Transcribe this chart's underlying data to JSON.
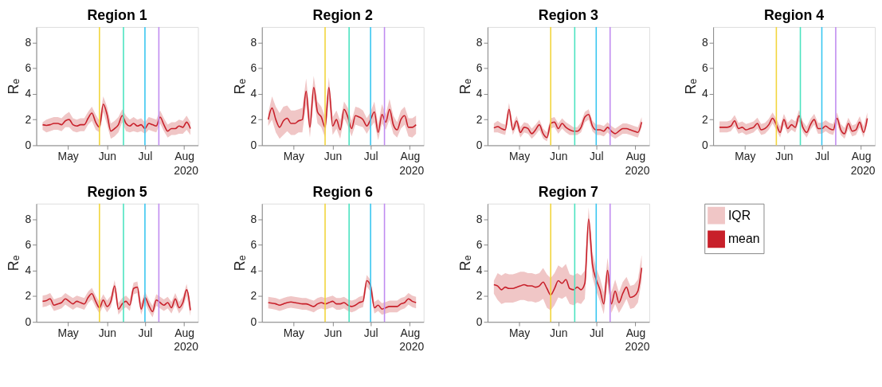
{
  "chart_data": [
    {
      "type": "line",
      "title": "Region 1",
      "ylabel": "Rₑ",
      "xlabel": "2020",
      "xlim": [
        "2020-04-06",
        "2020-08-12"
      ],
      "ylim": [
        0,
        9.2
      ],
      "yticks": [
        0,
        2,
        4,
        6,
        8
      ],
      "xticks": [
        {
          "value": "2020-05-01",
          "label": "May"
        },
        {
          "value": "2020-06-01",
          "label": "Jun"
        },
        {
          "value": "2020-07-01",
          "label": "Jul"
        },
        {
          "value": "2020-08-01",
          "label": "Aug"
        }
      ],
      "x": [
        "2020-04-11",
        "2020-04-14",
        "2020-04-17",
        "2020-04-20",
        "2020-04-23",
        "2020-04-26",
        "2020-04-29",
        "2020-05-02",
        "2020-05-05",
        "2020-05-08",
        "2020-05-11",
        "2020-05-14",
        "2020-05-17",
        "2020-05-20",
        "2020-05-23",
        "2020-05-26",
        "2020-05-29",
        "2020-06-01",
        "2020-06-04",
        "2020-06-07",
        "2020-06-10",
        "2020-06-13",
        "2020-06-16",
        "2020-06-19",
        "2020-06-22",
        "2020-06-25",
        "2020-06-28",
        "2020-07-01",
        "2020-07-04",
        "2020-07-07",
        "2020-07-10",
        "2020-07-13",
        "2020-07-16",
        "2020-07-19",
        "2020-07-22",
        "2020-07-25",
        "2020-07-28",
        "2020-07-31",
        "2020-08-03",
        "2020-08-06"
      ],
      "series": [
        {
          "type": "area",
          "color": "#f0c6c6",
          "values": [
            null,
            null,
            null,
            null,
            null,
            null,
            null,
            null,
            null,
            null,
            null,
            null,
            null,
            null,
            null,
            null,
            null,
            null,
            null,
            null,
            null,
            null,
            null,
            null,
            null,
            null,
            null,
            null,
            null,
            null,
            null,
            null,
            null,
            null,
            null,
            null,
            null,
            null,
            null,
            null
          ],
          "lower": [
            1.2,
            1.0,
            1.1,
            1.2,
            1.2,
            1.1,
            1.4,
            1.4,
            1.1,
            1.0,
            1.1,
            1.1,
            1.6,
            1.9,
            1.2,
            1.0,
            2.6,
            1.6,
            0.5,
            0.7,
            1.0,
            1.8,
            1.1,
            1.0,
            1.1,
            1.0,
            1.1,
            0.9,
            1.2,
            1.1,
            1.0,
            1.7,
            1.1,
            0.6,
            0.8,
            0.8,
            0.9,
            0.9,
            1.2,
            0.8
          ],
          "upper": [
            1.8,
            2.0,
            2.1,
            2.2,
            2.2,
            2.1,
            2.4,
            2.6,
            2.1,
            2.0,
            2.1,
            2.1,
            2.6,
            3.0,
            2.4,
            1.9,
            3.8,
            3.0,
            1.7,
            1.9,
            2.2,
            2.8,
            2.3,
            2.0,
            2.2,
            2.0,
            2.1,
            1.8,
            2.2,
            2.1,
            2.0,
            2.7,
            2.1,
            1.6,
            1.8,
            1.8,
            2.0,
            1.9,
            2.3,
            1.8
          ]
        },
        {
          "color": "#c8202a",
          "values": [
            1.6,
            1.55,
            1.6,
            1.7,
            1.7,
            1.6,
            1.9,
            2.0,
            1.6,
            1.5,
            1.6,
            1.6,
            2.1,
            2.5,
            1.8,
            1.4,
            3.2,
            2.4,
            1.1,
            1.3,
            1.6,
            2.3,
            1.7,
            1.5,
            1.7,
            1.5,
            1.6,
            1.3,
            1.7,
            1.6,
            1.5,
            2.2,
            1.6,
            1.1,
            1.3,
            1.3,
            1.5,
            1.4,
            1.8,
            1.3
          ]
        }
      ],
      "ref_lines": [
        {
          "axis": "x",
          "value": "2020-05-26",
          "color": "#f2d53c"
        },
        {
          "axis": "x",
          "value": "2020-06-14",
          "color": "#4be3c0"
        },
        {
          "axis": "x",
          "value": "2020-07-01",
          "color": "#38c6f0"
        },
        {
          "axis": "x",
          "value": "2020-07-12",
          "color": "#c08cf0"
        }
      ]
    },
    {
      "type": "line",
      "title": "Region 2",
      "ylabel": "Rₑ",
      "xlabel": "2020",
      "xlim": [
        "2020-04-06",
        "2020-08-12"
      ],
      "ylim": [
        0,
        9.2
      ],
      "yticks": [
        0,
        2,
        4,
        6,
        8
      ],
      "xticks": [
        {
          "value": "2020-05-01",
          "label": "May"
        },
        {
          "value": "2020-06-01",
          "label": "Jun"
        },
        {
          "value": "2020-07-01",
          "label": "Jul"
        },
        {
          "value": "2020-08-01",
          "label": "Aug"
        }
      ],
      "x": [
        "2020-04-11",
        "2020-04-14",
        "2020-04-17",
        "2020-04-20",
        "2020-04-23",
        "2020-04-26",
        "2020-04-29",
        "2020-05-02",
        "2020-05-05",
        "2020-05-08",
        "2020-05-11",
        "2020-05-14",
        "2020-05-17",
        "2020-05-20",
        "2020-05-23",
        "2020-05-26",
        "2020-05-29",
        "2020-06-01",
        "2020-06-04",
        "2020-06-07",
        "2020-06-10",
        "2020-06-13",
        "2020-06-16",
        "2020-06-19",
        "2020-06-22",
        "2020-06-25",
        "2020-06-28",
        "2020-07-01",
        "2020-07-04",
        "2020-07-07",
        "2020-07-10",
        "2020-07-13",
        "2020-07-16",
        "2020-07-19",
        "2020-07-22",
        "2020-07-25",
        "2020-07-28",
        "2020-07-31",
        "2020-08-03",
        "2020-08-06"
      ],
      "series": [
        {
          "type": "area",
          "color": "#f0c6c6",
          "values": [
            null,
            null,
            null,
            null,
            null,
            null,
            null,
            null,
            null,
            null,
            null,
            null,
            null,
            null,
            null,
            null,
            null,
            null,
            null,
            null,
            null,
            null,
            null,
            null,
            null,
            null,
            null,
            null,
            null,
            null,
            null,
            null,
            null,
            null,
            null,
            null,
            null,
            null,
            null,
            null
          ],
          "lower": [
            1.5,
            2.0,
            1.0,
            0.5,
            0.8,
            1.1,
            0.8,
            0.8,
            1.0,
            1.0,
            3.2,
            0.6,
            3.7,
            1.7,
            1.4,
            0.6,
            3.6,
            0.8,
            1.3,
            0.5,
            2.1,
            1.5,
            0.7,
            1.6,
            1.5,
            1.4,
            0.9,
            1.4,
            1.8,
            0.4,
            1.7,
            1.2,
            2.0,
            0.9,
            0.6,
            1.3,
            1.6,
            0.7,
            0.6,
            0.9
          ],
          "upper": [
            2.5,
            3.8,
            3.0,
            2.5,
            3.0,
            3.1,
            2.7,
            2.7,
            2.8,
            2.9,
            5.2,
            2.3,
            5.4,
            3.4,
            3.0,
            2.2,
            5.3,
            2.2,
            2.7,
            1.9,
            3.4,
            2.9,
            1.9,
            3.0,
            2.9,
            2.7,
            2.1,
            2.6,
            3.4,
            1.6,
            3.2,
            2.4,
            3.6,
            2.3,
            1.8,
            2.7,
            3.0,
            2.1,
            2.1,
            2.3
          ]
        },
        {
          "color": "#c8202a",
          "values": [
            2.0,
            2.9,
            2.0,
            1.4,
            1.9,
            2.1,
            1.7,
            1.7,
            1.9,
            2.0,
            4.2,
            1.4,
            4.5,
            2.6,
            2.2,
            1.4,
            4.5,
            1.5,
            2.0,
            1.2,
            2.8,
            2.2,
            1.3,
            2.3,
            2.2,
            2.0,
            1.5,
            2.0,
            2.6,
            1.0,
            2.4,
            1.8,
            2.8,
            1.6,
            1.2,
            2.0,
            2.3,
            1.4,
            1.4,
            1.6
          ]
        }
      ],
      "ref_lines": [
        {
          "axis": "x",
          "value": "2020-05-26",
          "color": "#f2d53c"
        },
        {
          "axis": "x",
          "value": "2020-06-14",
          "color": "#4be3c0"
        },
        {
          "axis": "x",
          "value": "2020-07-01",
          "color": "#38c6f0"
        },
        {
          "axis": "x",
          "value": "2020-07-12",
          "color": "#c08cf0"
        }
      ]
    },
    {
      "type": "line",
      "title": "Region 3",
      "ylabel": "Rₑ",
      "xlabel": "2020",
      "xlim": [
        "2020-04-06",
        "2020-08-12"
      ],
      "ylim": [
        0,
        9.2
      ],
      "yticks": [
        0,
        2,
        4,
        6,
        8
      ],
      "xticks": [
        {
          "value": "2020-05-01",
          "label": "May"
        },
        {
          "value": "2020-06-01",
          "label": "Jun"
        },
        {
          "value": "2020-07-01",
          "label": "Jul"
        },
        {
          "value": "2020-08-01",
          "label": "Aug"
        }
      ],
      "x": [
        "2020-04-11",
        "2020-04-14",
        "2020-04-17",
        "2020-04-20",
        "2020-04-23",
        "2020-04-26",
        "2020-04-29",
        "2020-05-02",
        "2020-05-05",
        "2020-05-08",
        "2020-05-11",
        "2020-05-14",
        "2020-05-17",
        "2020-05-20",
        "2020-05-23",
        "2020-05-26",
        "2020-05-29",
        "2020-06-01",
        "2020-06-04",
        "2020-06-07",
        "2020-06-10",
        "2020-06-13",
        "2020-06-16",
        "2020-06-19",
        "2020-06-22",
        "2020-06-25",
        "2020-06-28",
        "2020-07-01",
        "2020-07-04",
        "2020-07-07",
        "2020-07-10",
        "2020-07-13",
        "2020-07-16",
        "2020-07-19",
        "2020-07-22",
        "2020-07-25",
        "2020-07-28",
        "2020-07-31",
        "2020-08-03",
        "2020-08-06"
      ],
      "series": [
        {
          "type": "area",
          "color": "#f0c6c6",
          "values": [
            null,
            null,
            null,
            null,
            null,
            null,
            null,
            null,
            null,
            null,
            null,
            null,
            null,
            null,
            null,
            null,
            null,
            null,
            null,
            null,
            null,
            null,
            null,
            null,
            null,
            null,
            null,
            null,
            null,
            null,
            null,
            null,
            null,
            null,
            null,
            null,
            null,
            null,
            null,
            null
          ],
          "lower": [
            1.0,
            1.0,
            0.9,
            0.8,
            2.4,
            0.8,
            1.5,
            0.6,
            1.0,
            0.9,
            0.5,
            0.8,
            1.2,
            0.5,
            0.3,
            1.3,
            1.4,
            0.9,
            1.3,
            1.0,
            0.8,
            0.8,
            0.8,
            1.0,
            1.8,
            2.0,
            1.1,
            0.8,
            0.8,
            0.7,
            1.0,
            0.7,
            0.5,
            0.7,
            0.9,
            0.9,
            0.8,
            0.7,
            0.6,
            1.4
          ],
          "upper": [
            1.7,
            1.9,
            1.7,
            1.6,
            3.3,
            1.6,
            2.3,
            1.4,
            1.8,
            1.7,
            1.3,
            1.6,
            2.0,
            1.3,
            1.0,
            2.1,
            2.2,
            1.7,
            2.1,
            1.8,
            1.6,
            1.4,
            1.4,
            1.8,
            2.6,
            2.8,
            1.9,
            1.6,
            1.6,
            1.5,
            1.8,
            1.5,
            1.3,
            1.5,
            1.7,
            1.7,
            1.6,
            1.5,
            1.4,
            2.2
          ]
        },
        {
          "color": "#c8202a",
          "values": [
            1.35,
            1.45,
            1.3,
            1.2,
            2.8,
            1.2,
            1.9,
            1.0,
            1.4,
            1.3,
            0.9,
            1.2,
            1.6,
            0.9,
            0.6,
            1.7,
            1.8,
            1.3,
            1.7,
            1.4,
            1.2,
            1.1,
            1.1,
            1.4,
            2.2,
            2.4,
            1.5,
            1.2,
            1.2,
            1.1,
            1.4,
            1.1,
            0.9,
            1.1,
            1.3,
            1.3,
            1.2,
            1.1,
            1.0,
            1.8
          ]
        }
      ],
      "ref_lines": [
        {
          "axis": "x",
          "value": "2020-05-26",
          "color": "#f2d53c"
        },
        {
          "axis": "x",
          "value": "2020-06-14",
          "color": "#4be3c0"
        },
        {
          "axis": "x",
          "value": "2020-07-01",
          "color": "#38c6f0"
        },
        {
          "axis": "x",
          "value": "2020-07-12",
          "color": "#c08cf0"
        }
      ]
    },
    {
      "type": "line",
      "title": "Region 4",
      "ylabel": "Rₑ",
      "xlabel": "2020",
      "xlim": [
        "2020-04-06",
        "2020-08-12"
      ],
      "ylim": [
        0,
        9.2
      ],
      "yticks": [
        0,
        2,
        4,
        6,
        8
      ],
      "xticks": [
        {
          "value": "2020-05-01",
          "label": "May"
        },
        {
          "value": "2020-06-01",
          "label": "Jun"
        },
        {
          "value": "2020-07-01",
          "label": "Jul"
        },
        {
          "value": "2020-08-01",
          "label": "Aug"
        }
      ],
      "x": [
        "2020-04-11",
        "2020-04-14",
        "2020-04-17",
        "2020-04-20",
        "2020-04-23",
        "2020-04-26",
        "2020-04-29",
        "2020-05-02",
        "2020-05-05",
        "2020-05-08",
        "2020-05-11",
        "2020-05-14",
        "2020-05-17",
        "2020-05-20",
        "2020-05-23",
        "2020-05-26",
        "2020-05-29",
        "2020-06-01",
        "2020-06-04",
        "2020-06-07",
        "2020-06-10",
        "2020-06-13",
        "2020-06-16",
        "2020-06-19",
        "2020-06-22",
        "2020-06-25",
        "2020-06-28",
        "2020-07-01",
        "2020-07-04",
        "2020-07-07",
        "2020-07-10",
        "2020-07-13",
        "2020-07-16",
        "2020-07-19",
        "2020-07-22",
        "2020-07-25",
        "2020-07-28",
        "2020-07-31",
        "2020-08-03",
        "2020-08-06"
      ],
      "series": [
        {
          "type": "area",
          "color": "#f0c6c6",
          "values": [
            null,
            null,
            null,
            null,
            null,
            null,
            null,
            null,
            null,
            null,
            null,
            null,
            null,
            null,
            null,
            null,
            null,
            null,
            null,
            null,
            null,
            null,
            null,
            null,
            null,
            null,
            null,
            null,
            null,
            null,
            null,
            null,
            null,
            null,
            null,
            null,
            null,
            null,
            null,
            null
          ],
          "lower": [
            1.0,
            1.0,
            1.0,
            1.1,
            1.5,
            0.9,
            1.0,
            0.8,
            0.9,
            1.0,
            1.3,
            0.8,
            0.9,
            1.2,
            1.7,
            1.2,
            0.6,
            1.6,
            0.9,
            1.2,
            1.0,
            1.9,
            1.0,
            0.6,
            1.2,
            1.6,
            0.9,
            0.9,
            1.1,
            0.9,
            0.8,
            1.7,
            0.8,
            0.5,
            1.3,
            0.7,
            0.8,
            1.4,
            0.6,
            1.7
          ],
          "upper": [
            1.85,
            1.85,
            1.85,
            1.95,
            2.35,
            1.75,
            1.85,
            1.65,
            1.75,
            1.85,
            2.15,
            1.65,
            1.75,
            2.05,
            2.55,
            2.05,
            1.45,
            2.45,
            1.75,
            2.05,
            1.85,
            2.75,
            1.85,
            1.45,
            2.05,
            2.45,
            1.75,
            1.75,
            1.95,
            1.75,
            1.65,
            2.55,
            1.65,
            1.35,
            2.15,
            1.55,
            1.65,
            2.25,
            1.45,
            2.55
          ]
        },
        {
          "color": "#c8202a",
          "values": [
            1.4,
            1.4,
            1.4,
            1.5,
            1.9,
            1.3,
            1.4,
            1.2,
            1.3,
            1.4,
            1.7,
            1.2,
            1.3,
            1.6,
            2.1,
            1.6,
            1.0,
            2.0,
            1.3,
            1.6,
            1.4,
            2.3,
            1.4,
            1.0,
            1.6,
            2.0,
            1.3,
            1.3,
            1.5,
            1.3,
            1.2,
            2.1,
            1.2,
            0.9,
            1.7,
            1.1,
            1.2,
            1.8,
            1.0,
            2.1
          ]
        }
      ],
      "ref_lines": [
        {
          "axis": "x",
          "value": "2020-05-26",
          "color": "#f2d53c"
        },
        {
          "axis": "x",
          "value": "2020-06-14",
          "color": "#4be3c0"
        },
        {
          "axis": "x",
          "value": "2020-07-01",
          "color": "#38c6f0"
        },
        {
          "axis": "x",
          "value": "2020-07-12",
          "color": "#c08cf0"
        }
      ]
    },
    {
      "type": "line",
      "title": "Region 5",
      "ylabel": "Rₑ",
      "xlabel": "2020",
      "xlim": [
        "2020-04-06",
        "2020-08-12"
      ],
      "ylim": [
        0,
        9.2
      ],
      "yticks": [
        0,
        2,
        4,
        6,
        8
      ],
      "xticks": [
        {
          "value": "2020-05-01",
          "label": "May"
        },
        {
          "value": "2020-06-01",
          "label": "Jun"
        },
        {
          "value": "2020-07-01",
          "label": "Jul"
        },
        {
          "value": "2020-08-01",
          "label": "Aug"
        }
      ],
      "x": [
        "2020-04-11",
        "2020-04-14",
        "2020-04-17",
        "2020-04-20",
        "2020-04-23",
        "2020-04-26",
        "2020-04-29",
        "2020-05-02",
        "2020-05-05",
        "2020-05-08",
        "2020-05-11",
        "2020-05-14",
        "2020-05-17",
        "2020-05-20",
        "2020-05-23",
        "2020-05-26",
        "2020-05-29",
        "2020-06-01",
        "2020-06-04",
        "2020-06-07",
        "2020-06-10",
        "2020-06-13",
        "2020-06-16",
        "2020-06-19",
        "2020-06-22",
        "2020-06-25",
        "2020-06-28",
        "2020-07-01",
        "2020-07-04",
        "2020-07-07",
        "2020-07-10",
        "2020-07-13",
        "2020-07-16",
        "2020-07-19",
        "2020-07-22",
        "2020-07-25",
        "2020-07-28",
        "2020-07-31",
        "2020-08-03",
        "2020-08-06"
      ],
      "series": [
        {
          "type": "area",
          "color": "#f0c6c6",
          "values": [
            null,
            null,
            null,
            null,
            null,
            null,
            null,
            null,
            null,
            null,
            null,
            null,
            null,
            null,
            null,
            null,
            null,
            null,
            null,
            null,
            null,
            null,
            null,
            null,
            null,
            null,
            null,
            null,
            null,
            null,
            null,
            null,
            null,
            null,
            null,
            null,
            null,
            null,
            null,
            null
          ],
          "lower": [
            1.15,
            1.2,
            1.35,
            0.85,
            0.95,
            1.05,
            1.35,
            1.15,
            0.95,
            1.15,
            1.05,
            0.95,
            1.45,
            1.75,
            1.15,
            0.65,
            1.25,
            0.75,
            1.15,
            2.35,
            0.55,
            0.95,
            1.15,
            0.85,
            2.15,
            2.25,
            0.55,
            1.45,
            0.85,
            0.35,
            1.25,
            1.05,
            0.85,
            1.05,
            0.65,
            1.35,
            0.65,
            1.05,
            2.05,
            0.45
          ],
          "upper": [
            2.05,
            2.1,
            2.25,
            1.75,
            1.85,
            1.95,
            2.25,
            2.05,
            1.85,
            2.05,
            1.95,
            1.85,
            2.35,
            2.65,
            2.05,
            1.55,
            2.15,
            1.65,
            2.05,
            3.25,
            1.45,
            1.85,
            2.05,
            1.75,
            3.05,
            3.15,
            1.45,
            2.35,
            1.75,
            1.25,
            2.15,
            1.95,
            1.75,
            1.95,
            1.55,
            2.25,
            1.55,
            1.95,
            2.95,
            1.35
          ]
        },
        {
          "color": "#c8202a",
          "values": [
            1.6,
            1.65,
            1.8,
            1.3,
            1.4,
            1.5,
            1.8,
            1.6,
            1.4,
            1.6,
            1.5,
            1.4,
            1.9,
            2.2,
            1.6,
            1.1,
            1.7,
            1.2,
            1.6,
            2.8,
            1.0,
            1.4,
            1.6,
            1.3,
            2.6,
            2.7,
            1.0,
            1.9,
            1.3,
            0.8,
            1.7,
            1.5,
            1.3,
            1.5,
            1.1,
            1.8,
            1.1,
            1.5,
            2.5,
            0.9
          ]
        }
      ],
      "ref_lines": [
        {
          "axis": "x",
          "value": "2020-05-26",
          "color": "#f2d53c"
        },
        {
          "axis": "x",
          "value": "2020-06-14",
          "color": "#4be3c0"
        },
        {
          "axis": "x",
          "value": "2020-07-01",
          "color": "#38c6f0"
        },
        {
          "axis": "x",
          "value": "2020-07-12",
          "color": "#c08cf0"
        }
      ]
    },
    {
      "type": "line",
      "title": "Region 6",
      "ylabel": "Rₑ",
      "xlabel": "2020",
      "xlim": [
        "2020-04-06",
        "2020-08-12"
      ],
      "ylim": [
        0,
        9.2
      ],
      "yticks": [
        0,
        2,
        4,
        6,
        8
      ],
      "xticks": [
        {
          "value": "2020-05-01",
          "label": "May"
        },
        {
          "value": "2020-06-01",
          "label": "Jun"
        },
        {
          "value": "2020-07-01",
          "label": "Jul"
        },
        {
          "value": "2020-08-01",
          "label": "Aug"
        }
      ],
      "x": [
        "2020-04-11",
        "2020-04-14",
        "2020-04-17",
        "2020-04-20",
        "2020-04-23",
        "2020-04-26",
        "2020-04-29",
        "2020-05-02",
        "2020-05-05",
        "2020-05-08",
        "2020-05-11",
        "2020-05-14",
        "2020-05-17",
        "2020-05-20",
        "2020-05-23",
        "2020-05-26",
        "2020-05-29",
        "2020-06-01",
        "2020-06-04",
        "2020-06-07",
        "2020-06-10",
        "2020-06-13",
        "2020-06-16",
        "2020-06-19",
        "2020-06-22",
        "2020-06-25",
        "2020-06-28",
        "2020-07-01",
        "2020-07-04",
        "2020-07-07",
        "2020-07-10",
        "2020-07-13",
        "2020-07-16",
        "2020-07-19",
        "2020-07-22",
        "2020-07-25",
        "2020-07-28",
        "2020-07-31",
        "2020-08-03",
        "2020-08-06"
      ],
      "series": [
        {
          "type": "area",
          "color": "#f0c6c6",
          "values": [
            null,
            null,
            null,
            null,
            null,
            null,
            null,
            null,
            null,
            null,
            null,
            null,
            null,
            null,
            null,
            null,
            null,
            null,
            null,
            null,
            null,
            null,
            null,
            null,
            null,
            null,
            null,
            null,
            null,
            null,
            null,
            null,
            null,
            null,
            null,
            null,
            null,
            null,
            null,
            null
          ],
          "lower": [
            1.05,
            1.0,
            0.95,
            0.85,
            0.95,
            1.05,
            1.1,
            1.05,
            1.0,
            0.95,
            0.95,
            0.85,
            0.75,
            0.95,
            1.05,
            0.95,
            1.05,
            1.15,
            0.95,
            0.95,
            1.05,
            0.85,
            0.75,
            0.85,
            1.05,
            1.15,
            2.75,
            2.35,
            0.65,
            0.85,
            0.55,
            0.65,
            0.75,
            0.75,
            0.75,
            0.95,
            1.05,
            1.35,
            1.15,
            1.05
          ],
          "upper": [
            1.95,
            1.9,
            1.85,
            1.75,
            1.85,
            1.95,
            2.0,
            1.95,
            1.9,
            1.85,
            1.85,
            1.75,
            1.65,
            1.85,
            1.95,
            1.85,
            1.95,
            2.05,
            1.85,
            1.85,
            1.95,
            1.75,
            1.65,
            1.75,
            1.95,
            2.05,
            3.65,
            3.25,
            1.55,
            1.75,
            1.45,
            1.55,
            1.65,
            1.65,
            1.65,
            1.85,
            1.95,
            2.25,
            2.05,
            1.95
          ]
        },
        {
          "color": "#c8202a",
          "values": [
            1.5,
            1.45,
            1.4,
            1.3,
            1.4,
            1.5,
            1.55,
            1.5,
            1.45,
            1.4,
            1.4,
            1.3,
            1.2,
            1.4,
            1.5,
            1.4,
            1.5,
            1.6,
            1.4,
            1.4,
            1.5,
            1.3,
            1.2,
            1.3,
            1.5,
            1.6,
            3.2,
            2.8,
            1.1,
            1.3,
            1.0,
            1.1,
            1.2,
            1.2,
            1.2,
            1.4,
            1.5,
            1.8,
            1.6,
            1.5
          ]
        }
      ],
      "ref_lines": [
        {
          "axis": "x",
          "value": "2020-05-26",
          "color": "#f2d53c"
        },
        {
          "axis": "x",
          "value": "2020-06-14",
          "color": "#4be3c0"
        },
        {
          "axis": "x",
          "value": "2020-07-01",
          "color": "#38c6f0"
        },
        {
          "axis": "x",
          "value": "2020-07-12",
          "color": "#c08cf0"
        }
      ]
    },
    {
      "type": "line",
      "title": "Region 7",
      "ylabel": "Rₑ",
      "xlabel": "2020",
      "xlim": [
        "2020-04-06",
        "2020-08-12"
      ],
      "ylim": [
        0,
        9.2
      ],
      "yticks": [
        0,
        2,
        4,
        6,
        8
      ],
      "legend": "right",
      "xticks": [
        {
          "value": "2020-05-01",
          "label": "May"
        },
        {
          "value": "2020-06-01",
          "label": "Jun"
        },
        {
          "value": "2020-07-01",
          "label": "Jul"
        },
        {
          "value": "2020-08-01",
          "label": "Aug"
        }
      ],
      "x": [
        "2020-04-11",
        "2020-04-14",
        "2020-04-17",
        "2020-04-20",
        "2020-04-23",
        "2020-04-26",
        "2020-04-29",
        "2020-05-02",
        "2020-05-05",
        "2020-05-08",
        "2020-05-11",
        "2020-05-14",
        "2020-05-17",
        "2020-05-20",
        "2020-05-23",
        "2020-05-26",
        "2020-05-29",
        "2020-06-01",
        "2020-06-04",
        "2020-06-07",
        "2020-06-10",
        "2020-06-13",
        "2020-06-16",
        "2020-06-19",
        "2020-06-22",
        "2020-06-25",
        "2020-06-28",
        "2020-07-01",
        "2020-07-04",
        "2020-07-07",
        "2020-07-10",
        "2020-07-13",
        "2020-07-16",
        "2020-07-19",
        "2020-07-22",
        "2020-07-25",
        "2020-07-28",
        "2020-07-31",
        "2020-08-03",
        "2020-08-06"
      ],
      "series": [
        {
          "name": "IQR",
          "type": "area",
          "color": "#f0c6c6",
          "values": [
            null,
            null,
            null,
            null,
            null,
            null,
            null,
            null,
            null,
            null,
            null,
            null,
            null,
            null,
            null,
            null,
            null,
            null,
            null,
            null,
            null,
            null,
            null,
            null,
            null,
            null,
            null,
            null,
            null,
            null,
            null,
            null,
            null,
            null,
            null,
            null,
            null,
            null,
            null,
            null
          ],
          "lower": [
            2.2,
            1.7,
            1.4,
            1.5,
            1.5,
            1.5,
            1.6,
            1.7,
            1.7,
            1.6,
            1.6,
            1.5,
            1.6,
            1.8,
            1.1,
            0.9,
            1.3,
            1.9,
            1.8,
            2.0,
            1.4,
            1.3,
            1.5,
            1.4,
            1.8,
            6.9,
            3.5,
            2.4,
            1.6,
            0.6,
            3.1,
            0.7,
            1.4,
            0.7,
            1.2,
            1.8,
            1.0,
            1.1,
            1.5,
            3.2
          ],
          "upper": [
            3.2,
            3.8,
            3.6,
            3.8,
            3.7,
            3.7,
            3.8,
            3.9,
            3.9,
            3.8,
            3.8,
            3.7,
            3.8,
            4.2,
            3.7,
            3.4,
            3.8,
            4.4,
            4.2,
            4.5,
            3.7,
            3.6,
            3.8,
            3.6,
            4.0,
            8.9,
            5.4,
            4.2,
            3.4,
            2.3,
            5.0,
            2.3,
            3.3,
            2.3,
            3.1,
            3.5,
            2.8,
            2.9,
            3.3,
            5.2
          ]
        },
        {
          "name": "mean",
          "color": "#c8202a",
          "values": [
            2.9,
            2.8,
            2.5,
            2.7,
            2.6,
            2.6,
            2.7,
            2.8,
            2.9,
            2.8,
            2.8,
            2.7,
            2.8,
            3.1,
            2.6,
            2.1,
            2.6,
            3.2,
            3.0,
            3.3,
            2.6,
            2.5,
            2.7,
            2.5,
            3.0,
            8.0,
            4.5,
            3.3,
            2.5,
            1.4,
            4.0,
            1.4,
            2.4,
            1.5,
            2.2,
            2.7,
            1.9,
            2.0,
            2.4,
            4.2
          ]
        }
      ],
      "ref_lines": [
        {
          "axis": "x",
          "value": "2020-05-26",
          "color": "#f2d53c"
        },
        {
          "axis": "x",
          "value": "2020-06-14",
          "color": "#4be3c0"
        },
        {
          "axis": "x",
          "value": "2020-07-01",
          "color": "#38c6f0"
        },
        {
          "axis": "x",
          "value": "2020-07-12",
          "color": "#c08cf0"
        }
      ]
    }
  ]
}
